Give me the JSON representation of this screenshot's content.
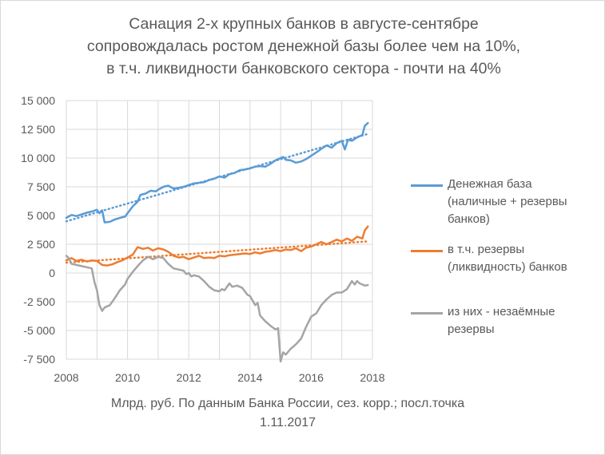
{
  "chart_data": {
    "type": "line",
    "title_lines": [
      "Санация 2-х крупных банков в августе-сентябре",
      "сопровождалась ростом денежной базы более чем на 10%,",
      "в т.ч. ликвидности банковского сектора - почти на 40%"
    ],
    "footer_lines": [
      "Млрд. руб. По данным Банка России, сез. корр.; посл.точка",
      "1.11.2017"
    ],
    "xlim": [
      2008,
      2018
    ],
    "ylim": [
      -7500,
      15000
    ],
    "x_ticks": [
      2008,
      2010,
      2012,
      2014,
      2016,
      2018
    ],
    "x_tick_labels": [
      "2008",
      "2010",
      "2012",
      "2014",
      "2016",
      "2018"
    ],
    "y_ticks": [
      15000,
      12500,
      10000,
      7500,
      5000,
      2500,
      0,
      -2500,
      -5000,
      -7500
    ],
    "y_tick_labels": [
      "15 000",
      "12 500",
      "10 000",
      "7 500",
      "5 000",
      "2 500",
      "0",
      "-2 500",
      "-5 000",
      "-7 500"
    ],
    "series": [
      {
        "name": "Денежная база (наличные + резервы банков)",
        "legend_lines": [
          "Денежная база",
          "(наличные + резервы",
          "банков)"
        ],
        "color": "#5b9bd5",
        "trend": [
          [
            2008.0,
            4500
          ],
          [
            2017.85,
            12100
          ]
        ],
        "points": [
          [
            2008.0,
            4800
          ],
          [
            2008.17,
            5050
          ],
          [
            2008.33,
            4950
          ],
          [
            2008.5,
            5100
          ],
          [
            2008.67,
            5250
          ],
          [
            2008.83,
            5350
          ],
          [
            2009.0,
            5500
          ],
          [
            2009.08,
            5200
          ],
          [
            2009.17,
            5450
          ],
          [
            2009.25,
            4400
          ],
          [
            2009.42,
            4450
          ],
          [
            2009.58,
            4650
          ],
          [
            2009.75,
            4800
          ],
          [
            2009.92,
            4900
          ],
          [
            2010.0,
            5200
          ],
          [
            2010.17,
            5800
          ],
          [
            2010.33,
            6200
          ],
          [
            2010.42,
            6800
          ],
          [
            2010.58,
            6900
          ],
          [
            2010.75,
            7150
          ],
          [
            2010.92,
            7100
          ],
          [
            2011.0,
            7250
          ],
          [
            2011.17,
            7500
          ],
          [
            2011.33,
            7600
          ],
          [
            2011.5,
            7350
          ],
          [
            2011.67,
            7400
          ],
          [
            2011.83,
            7500
          ],
          [
            2012.0,
            7650
          ],
          [
            2012.17,
            7800
          ],
          [
            2012.33,
            7850
          ],
          [
            2012.5,
            7900
          ],
          [
            2012.67,
            8100
          ],
          [
            2012.83,
            8200
          ],
          [
            2013.0,
            8400
          ],
          [
            2013.17,
            8300
          ],
          [
            2013.33,
            8600
          ],
          [
            2013.5,
            8700
          ],
          [
            2013.67,
            8950
          ],
          [
            2013.83,
            9000
          ],
          [
            2014.0,
            9100
          ],
          [
            2014.17,
            9250
          ],
          [
            2014.33,
            9300
          ],
          [
            2014.5,
            9250
          ],
          [
            2014.67,
            9500
          ],
          [
            2014.83,
            9800
          ],
          [
            2015.0,
            10000
          ],
          [
            2015.08,
            10100
          ],
          [
            2015.17,
            9850
          ],
          [
            2015.33,
            9800
          ],
          [
            2015.5,
            9600
          ],
          [
            2015.67,
            9700
          ],
          [
            2015.83,
            9900
          ],
          [
            2016.0,
            10200
          ],
          [
            2016.17,
            10500
          ],
          [
            2016.33,
            10800
          ],
          [
            2016.5,
            11100
          ],
          [
            2016.67,
            10900
          ],
          [
            2016.83,
            11300
          ],
          [
            2017.0,
            11500
          ],
          [
            2017.1,
            10750
          ],
          [
            2017.2,
            11600
          ],
          [
            2017.33,
            11500
          ],
          [
            2017.5,
            11800
          ],
          [
            2017.67,
            12000
          ],
          [
            2017.75,
            12800
          ],
          [
            2017.85,
            13050
          ]
        ]
      },
      {
        "name": "в т.ч. резервы (ликвидность) банков",
        "legend_lines": [
          "в т.ч. резервы",
          "(ликвидность) банков"
        ],
        "color": "#ed7d31",
        "trend": [
          [
            2008.0,
            900
          ],
          [
            2017.85,
            2750
          ]
        ],
        "points": [
          [
            2008.0,
            1100
          ],
          [
            2008.17,
            1300
          ],
          [
            2008.33,
            1050
          ],
          [
            2008.5,
            1150
          ],
          [
            2008.67,
            1000
          ],
          [
            2008.83,
            1100
          ],
          [
            2009.0,
            1050
          ],
          [
            2009.17,
            700
          ],
          [
            2009.33,
            650
          ],
          [
            2009.5,
            750
          ],
          [
            2009.67,
            950
          ],
          [
            2009.83,
            1100
          ],
          [
            2010.0,
            1350
          ],
          [
            2010.17,
            1600
          ],
          [
            2010.33,
            2250
          ],
          [
            2010.5,
            2100
          ],
          [
            2010.67,
            2200
          ],
          [
            2010.83,
            1950
          ],
          [
            2011.0,
            2150
          ],
          [
            2011.17,
            2050
          ],
          [
            2011.33,
            1850
          ],
          [
            2011.5,
            1500
          ],
          [
            2011.67,
            1350
          ],
          [
            2011.83,
            1400
          ],
          [
            2012.0,
            1200
          ],
          [
            2012.17,
            1350
          ],
          [
            2012.33,
            1500
          ],
          [
            2012.5,
            1300
          ],
          [
            2012.67,
            1350
          ],
          [
            2012.83,
            1300
          ],
          [
            2013.0,
            1500
          ],
          [
            2013.17,
            1450
          ],
          [
            2013.33,
            1550
          ],
          [
            2013.5,
            1600
          ],
          [
            2013.67,
            1650
          ],
          [
            2013.83,
            1700
          ],
          [
            2014.0,
            1650
          ],
          [
            2014.17,
            1800
          ],
          [
            2014.33,
            1700
          ],
          [
            2014.5,
            1850
          ],
          [
            2014.67,
            1900
          ],
          [
            2014.83,
            2000
          ],
          [
            2015.0,
            1900
          ],
          [
            2015.17,
            2050
          ],
          [
            2015.33,
            2000
          ],
          [
            2015.5,
            2150
          ],
          [
            2015.67,
            1900
          ],
          [
            2015.83,
            2200
          ],
          [
            2016.0,
            2300
          ],
          [
            2016.17,
            2500
          ],
          [
            2016.33,
            2700
          ],
          [
            2016.5,
            2500
          ],
          [
            2016.67,
            2700
          ],
          [
            2016.83,
            2900
          ],
          [
            2017.0,
            2750
          ],
          [
            2017.17,
            3000
          ],
          [
            2017.33,
            2800
          ],
          [
            2017.5,
            3150
          ],
          [
            2017.67,
            3000
          ],
          [
            2017.75,
            3700
          ],
          [
            2017.85,
            4050
          ]
        ]
      },
      {
        "name": "из них - незаёмные резервы",
        "legend_lines": [
          "из них - незаёмные",
          "резервы"
        ],
        "color": "#a5a5a5",
        "trend": null,
        "points": [
          [
            2008.0,
            1500
          ],
          [
            2008.08,
            1300
          ],
          [
            2008.17,
            800
          ],
          [
            2008.33,
            700
          ],
          [
            2008.5,
            600
          ],
          [
            2008.67,
            500
          ],
          [
            2008.83,
            400
          ],
          [
            2008.92,
            -800
          ],
          [
            2009.0,
            -1500
          ],
          [
            2009.08,
            -2800
          ],
          [
            2009.17,
            -3300
          ],
          [
            2009.25,
            -3000
          ],
          [
            2009.42,
            -2800
          ],
          [
            2009.58,
            -2200
          ],
          [
            2009.75,
            -1500
          ],
          [
            2009.92,
            -1000
          ],
          [
            2010.0,
            -500
          ],
          [
            2010.17,
            100
          ],
          [
            2010.33,
            600
          ],
          [
            2010.5,
            1100
          ],
          [
            2010.67,
            1400
          ],
          [
            2010.83,
            1200
          ],
          [
            2011.0,
            1400
          ],
          [
            2011.17,
            1300
          ],
          [
            2011.33,
            800
          ],
          [
            2011.5,
            400
          ],
          [
            2011.67,
            300
          ],
          [
            2011.83,
            200
          ],
          [
            2011.92,
            -100
          ],
          [
            2012.0,
            0
          ],
          [
            2012.08,
            -300
          ],
          [
            2012.17,
            -200
          ],
          [
            2012.33,
            -300
          ],
          [
            2012.5,
            -700
          ],
          [
            2012.67,
            -1200
          ],
          [
            2012.83,
            -1500
          ],
          [
            2013.0,
            -1600
          ],
          [
            2013.08,
            -1400
          ],
          [
            2013.17,
            -1500
          ],
          [
            2013.33,
            -900
          ],
          [
            2013.42,
            -1200
          ],
          [
            2013.58,
            -1100
          ],
          [
            2013.75,
            -1300
          ],
          [
            2013.92,
            -1900
          ],
          [
            2014.0,
            -2000
          ],
          [
            2014.17,
            -2800
          ],
          [
            2014.25,
            -2600
          ],
          [
            2014.33,
            -3700
          ],
          [
            2014.5,
            -4200
          ],
          [
            2014.67,
            -4600
          ],
          [
            2014.83,
            -4900
          ],
          [
            2014.92,
            -4800
          ],
          [
            2015.0,
            -7700
          ],
          [
            2015.08,
            -6900
          ],
          [
            2015.17,
            -7100
          ],
          [
            2015.33,
            -6600
          ],
          [
            2015.5,
            -6200
          ],
          [
            2015.67,
            -5700
          ],
          [
            2015.83,
            -4700
          ],
          [
            2016.0,
            -3800
          ],
          [
            2016.17,
            -3500
          ],
          [
            2016.33,
            -2800
          ],
          [
            2016.5,
            -2300
          ],
          [
            2016.67,
            -1900
          ],
          [
            2016.83,
            -1700
          ],
          [
            2017.0,
            -1700
          ],
          [
            2017.17,
            -1400
          ],
          [
            2017.33,
            -700
          ],
          [
            2017.42,
            -1000
          ],
          [
            2017.5,
            -700
          ],
          [
            2017.58,
            -900
          ],
          [
            2017.67,
            -1000
          ],
          [
            2017.75,
            -1100
          ],
          [
            2017.85,
            -1050
          ]
        ]
      }
    ]
  }
}
